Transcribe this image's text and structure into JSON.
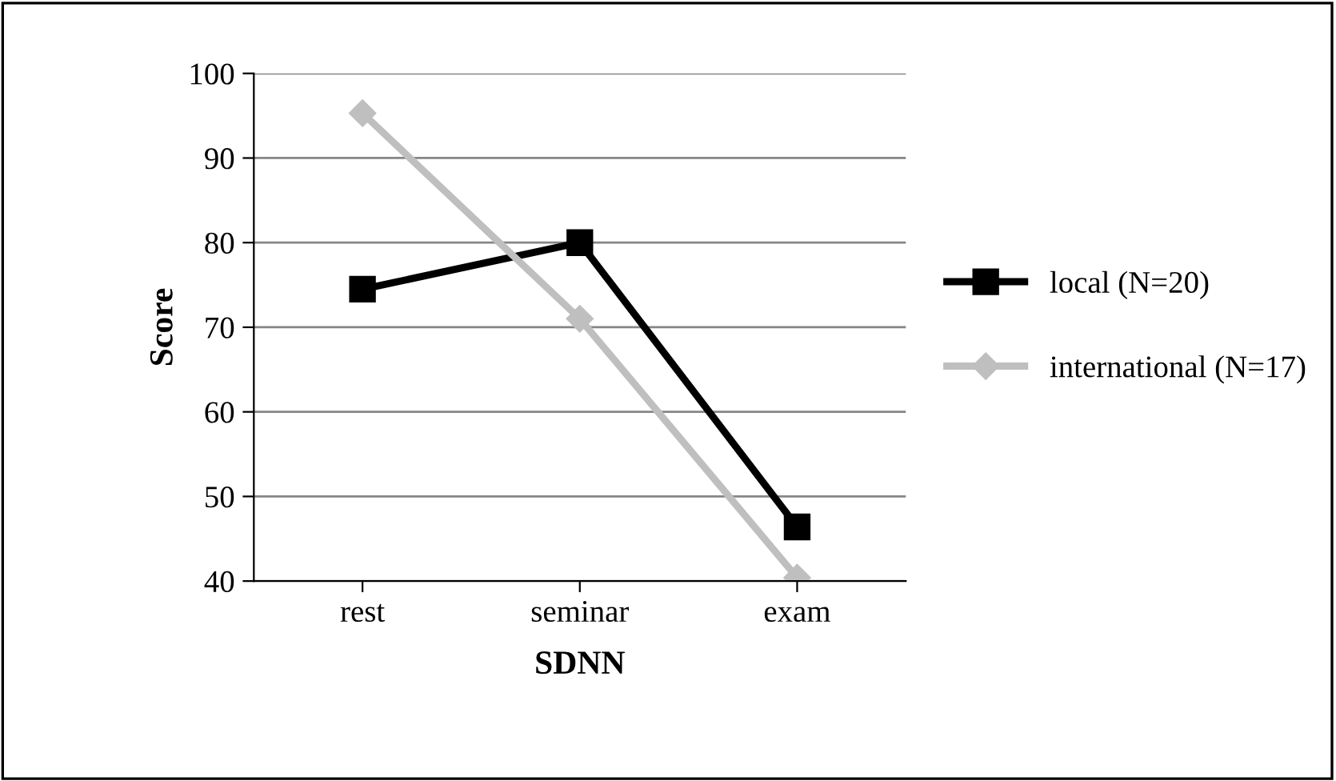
{
  "chart_data": {
    "type": "line",
    "xlabel": "SDNN",
    "ylabel": "Score",
    "categories": [
      "rest",
      "seminar",
      "exam"
    ],
    "series": [
      {
        "name": "local (N=20)",
        "color": "#000000",
        "values": [
          74.5,
          80,
          46.4
        ],
        "marker": "square"
      },
      {
        "name": "international (N=17)",
        "color": "#bfbfbf",
        "values": [
          95.3,
          71,
          40.4
        ],
        "marker": "diamond"
      }
    ],
    "ylim": [
      40,
      100
    ],
    "yticks": [
      40,
      50,
      60,
      70,
      80,
      90,
      100
    ],
    "grid": "y",
    "legend": "right",
    "line_style": "solid"
  }
}
